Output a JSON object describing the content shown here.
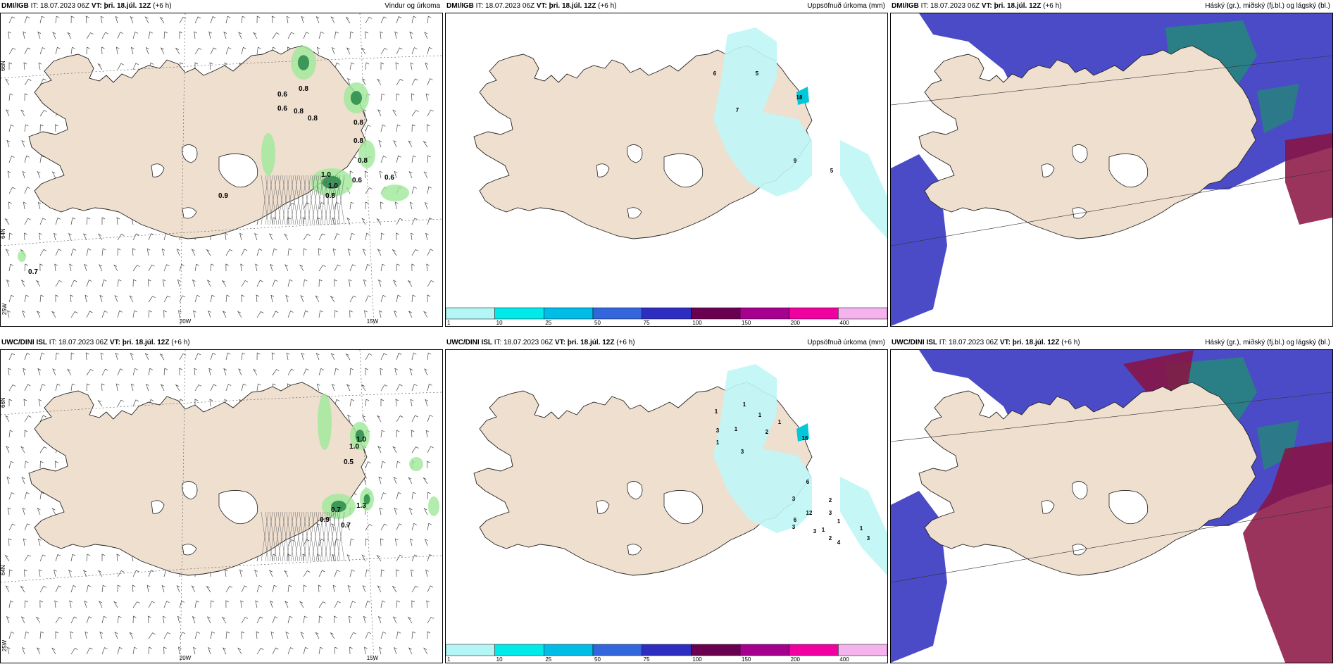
{
  "panels": [
    {
      "id": "p1",
      "model": "DMI/IGB",
      "it_label": "IT:",
      "it_value": "18.07.2023 06Z",
      "vt_label": "VT:",
      "vt_value": "þri. 18.júl. 12Z",
      "lead": "(+6 h)",
      "title_right": "Vindur og úrkoma",
      "type": "wind",
      "lat_labels": [
        "66N",
        "64N"
      ],
      "lon_labels": [
        "25W",
        "20W",
        "15W"
      ],
      "values": [
        "0.8",
        "0.6",
        "0.6",
        "0.8",
        "0.8",
        "0.8",
        "0.8",
        "0.8",
        "1.0",
        "0.6",
        "0.6",
        "0.9",
        "1.0",
        "0.8",
        "0.7"
      ]
    },
    {
      "id": "p2",
      "model": "DMI/IGB",
      "it_label": "IT:",
      "it_value": "18.07.2023 06Z",
      "vt_label": "VT:",
      "vt_value": "þri. 18.júl. 12Z",
      "lead": "(+6 h)",
      "title_right": "Uppsöfnuð úrkoma (mm)",
      "type": "precip",
      "values": [
        "6",
        "5",
        "7",
        "18",
        "9",
        "5"
      ]
    },
    {
      "id": "p3",
      "model": "DMI/IGB",
      "it_label": "IT:",
      "it_value": "18.07.2023 06Z",
      "vt_label": "VT:",
      "vt_value": "þri. 18.júl. 12Z",
      "lead": "(+6 h)",
      "title_right": "Háský (gr.), miðský (fj.bl.) og lágský (bl.)",
      "type": "cloud"
    },
    {
      "id": "p4",
      "model": "UWC/DINI ISL",
      "it_label": "IT:",
      "it_value": "18.07.2023 06Z",
      "vt_label": "VT:",
      "vt_value": "þri. 18.júl. 12Z",
      "lead": "(+6 h)",
      "title_right": "",
      "type": "wind",
      "lat_labels": [
        "66N",
        "64N"
      ],
      "lon_labels": [
        "25W",
        "20W",
        "15W"
      ],
      "values": [
        "1.0",
        "1.0",
        "0.5",
        "0.7",
        "0.9",
        "1.3",
        "0.7"
      ]
    },
    {
      "id": "p5",
      "model": "UWC/DINI ISL",
      "it_label": "IT:",
      "it_value": "18.07.2023 06Z",
      "vt_label": "VT:",
      "vt_value": "þri. 18.júl. 12Z",
      "lead": "(+6 h)",
      "title_right": "Uppsöfnuð úrkoma (mm)",
      "type": "precip",
      "values": [
        "1",
        "1",
        "1",
        "3",
        "1",
        "2",
        "1",
        "3",
        "1",
        "16",
        "6",
        "3",
        "12",
        "6",
        "3",
        "2",
        "3",
        "1",
        "1",
        "3",
        "2",
        "4",
        "1",
        "3"
      ]
    },
    {
      "id": "p6",
      "model": "UWC/DINI ISL",
      "it_label": "IT:",
      "it_value": "18.07.2023 06Z",
      "vt_label": "VT:",
      "vt_value": "þri. 18.júl. 12Z",
      "lead": "(+6 h)",
      "title_right": "Háský (gr.), miðský (fj.bl.) og lágský (bl.)",
      "type": "cloud"
    }
  ],
  "precip_legend": {
    "labels": [
      "1",
      "10",
      "25",
      "50",
      "75",
      "100",
      "150",
      "200",
      "400"
    ],
    "colors": [
      "#b4f5f5",
      "#00eaea",
      "#00bde8",
      "#3366dd",
      "#2d2dc0",
      "#6a0050",
      "#a6008f",
      "#f000a0",
      "#f5b3ee"
    ]
  },
  "colors": {
    "land": "#efdfcf",
    "land_wind": "#efdfcf",
    "cloud_high": "#4b4bc7",
    "cloud_mid": "#1f8f6f",
    "cloud_low": "#8a1040",
    "precip_light": "#bff6f6"
  }
}
